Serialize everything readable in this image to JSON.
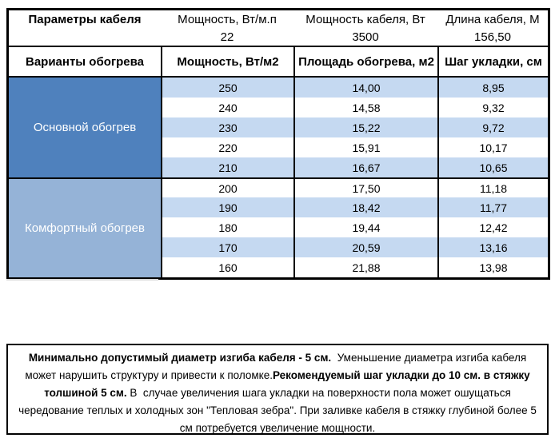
{
  "table": {
    "param_header": {
      "title": "Параметры кабеля",
      "power_per_m": "Мощность, Вт/м.п",
      "cable_power": "Мощность кабеля, Вт",
      "cable_length": "Длина кабеля, М"
    },
    "param_values": {
      "power_per_m": "22",
      "cable_power": "3500",
      "cable_length": "156,50"
    },
    "sub_header": {
      "title": "Варианты обогрева",
      "power": "Мощность, Вт/м2",
      "area": "Площадь обогрева, м2",
      "step": "Шаг укладки, см"
    },
    "sections": [
      {
        "label": "Основной обогрев",
        "rows": [
          [
            "250",
            "14,00",
            "8,95"
          ],
          [
            "240",
            "14,58",
            "9,32"
          ],
          [
            "230",
            "15,22",
            "9,72"
          ],
          [
            "220",
            "15,91",
            "10,17"
          ],
          [
            "210",
            "16,67",
            "10,65"
          ]
        ]
      },
      {
        "label": "Комфортный обогрев",
        "rows": [
          [
            "200",
            "17,50",
            "11,18"
          ],
          [
            "190",
            "18,42",
            "11,77"
          ],
          [
            "180",
            "19,44",
            "12,42"
          ],
          [
            "170",
            "20,59",
            "13,16"
          ],
          [
            "160",
            "21,88",
            "13,98"
          ]
        ]
      }
    ]
  },
  "note": {
    "bold1": "Минимально допустимый диаметр изгиба кабеля - 5 см.",
    "text1": "  Уменьшение диаметра изгиба кабеля может нарушить структуру и привести к поломке.",
    "bold2": "Рекомендуемый шаг укладки до 10 см. в стяжку толшиной 5 см.",
    "text2": " В  случае увеличения шага укладки на поверхности пола может ошущаться чередование теплых и холодных зон \"Тепловая зебра\". При заливке кабеля в стяжку глубиной более 5 см потребуется увеличение мощности."
  },
  "colors": {
    "main_section_bg": "#4f81bd",
    "comfort_section_bg": "#95b3d7",
    "stripe_bg": "#c5d9f1",
    "border": "#000000",
    "section_text": "#ffffff"
  }
}
